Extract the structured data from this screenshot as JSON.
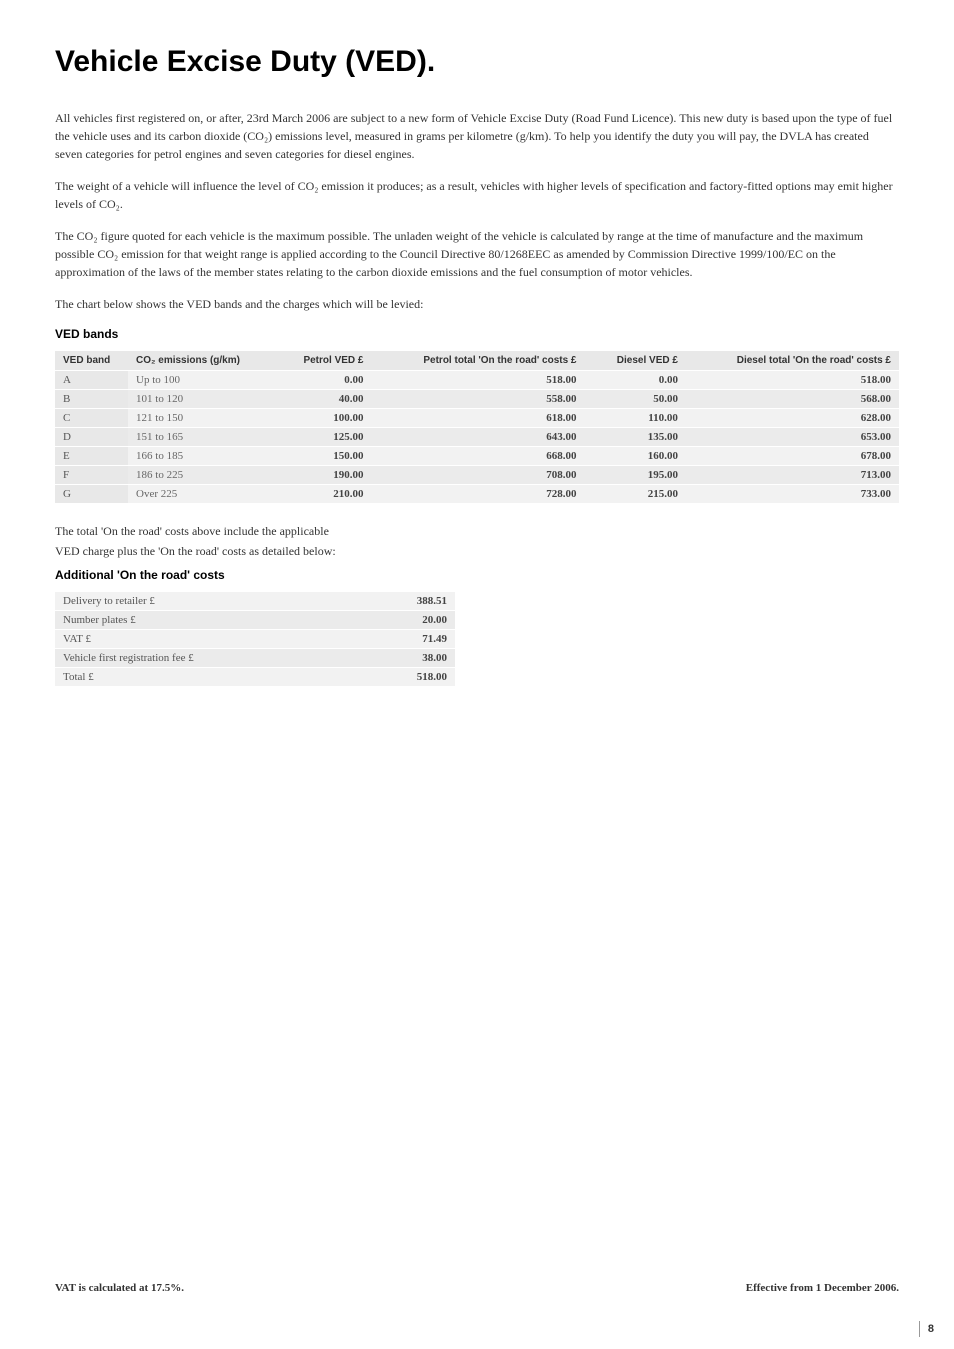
{
  "title": "Vehicle Excise Duty (VED).",
  "paragraphs": {
    "p1": "All vehicles first registered on, or after, 23rd March 2006 are subject to a new form of Vehicle Excise Duty (Road Fund Licence). This new duty is based upon the type of fuel the vehicle uses and its carbon dioxide (CO₂) emissions level, measured in grams per kilometre (g/km). To help you identify the duty you will pay, the DVLA has created seven categories for petrol engines and seven categories for diesel engines.",
    "p2": "The weight of a vehicle will influence the level of CO₂ emission it produces; as a result, vehicles with higher levels of specification and factory-fitted options may emit higher levels of CO₂.",
    "p3": "The CO₂ figure quoted for each vehicle is the maximum possible. The unladen weight of the vehicle is calculated by range at the time of manufacture and the maximum possible CO₂ emission for that weight range is applied according to the Council Directive 80/1268EEC as amended by Commission Directive 1999/100/EC on the approximation of the laws of the member states relating to the carbon dioxide emissions and the fuel consumption of motor vehicles.",
    "p4": "The chart below shows the VED bands and the charges which will be levied:"
  },
  "ved_heading": "VED bands",
  "ved_table": {
    "headers": {
      "band": "VED band",
      "emissions": "CO₂ emissions (g/km)",
      "petrol_ved": "Petrol VED £",
      "petrol_total": "Petrol total 'On the road' costs £",
      "diesel_ved": "Diesel VED £",
      "diesel_total": "Diesel total 'On the road' costs £"
    },
    "rows": [
      {
        "band": "A",
        "emissions": "Up to 100",
        "petrol_ved": "0.00",
        "petrol_total": "518.00",
        "diesel_ved": "0.00",
        "diesel_total": "518.00"
      },
      {
        "band": "B",
        "emissions": "101 to 120",
        "petrol_ved": "40.00",
        "petrol_total": "558.00",
        "diesel_ved": "50.00",
        "diesel_total": "568.00"
      },
      {
        "band": "C",
        "emissions": "121 to 150",
        "petrol_ved": "100.00",
        "petrol_total": "618.00",
        "diesel_ved": "110.00",
        "diesel_total": "628.00"
      },
      {
        "band": "D",
        "emissions": "151 to 165",
        "petrol_ved": "125.00",
        "petrol_total": "643.00",
        "diesel_ved": "135.00",
        "diesel_total": "653.00"
      },
      {
        "band": "E",
        "emissions": "166 to 185",
        "petrol_ved": "150.00",
        "petrol_total": "668.00",
        "diesel_ved": "160.00",
        "diesel_total": "678.00"
      },
      {
        "band": "F",
        "emissions": "186 to 225",
        "petrol_ved": "190.00",
        "petrol_total": "708.00",
        "diesel_ved": "195.00",
        "diesel_total": "713.00"
      },
      {
        "band": "G",
        "emissions": "Over 225",
        "petrol_ved": "210.00",
        "petrol_total": "728.00",
        "diesel_ved": "215.00",
        "diesel_total": "733.00"
      }
    ]
  },
  "note1": "The total 'On the road' costs above include the applicable",
  "note2": "VED charge plus the 'On the road' costs as detailed below:",
  "costs_heading": "Additional 'On the road' costs",
  "costs_table": {
    "rows": [
      {
        "label": "Delivery to retailer £",
        "value": "388.51"
      },
      {
        "label": "Number plates £",
        "value": "20.00"
      },
      {
        "label": "VAT £",
        "value": "71.49"
      },
      {
        "label": "Vehicle first registration fee £",
        "value": "38.00"
      },
      {
        "label": "Total £",
        "value": "518.00"
      }
    ]
  },
  "footer": {
    "left": "VAT is calculated at 17.5%.",
    "right": "Effective from 1 December 2006."
  },
  "page_number": "8"
}
